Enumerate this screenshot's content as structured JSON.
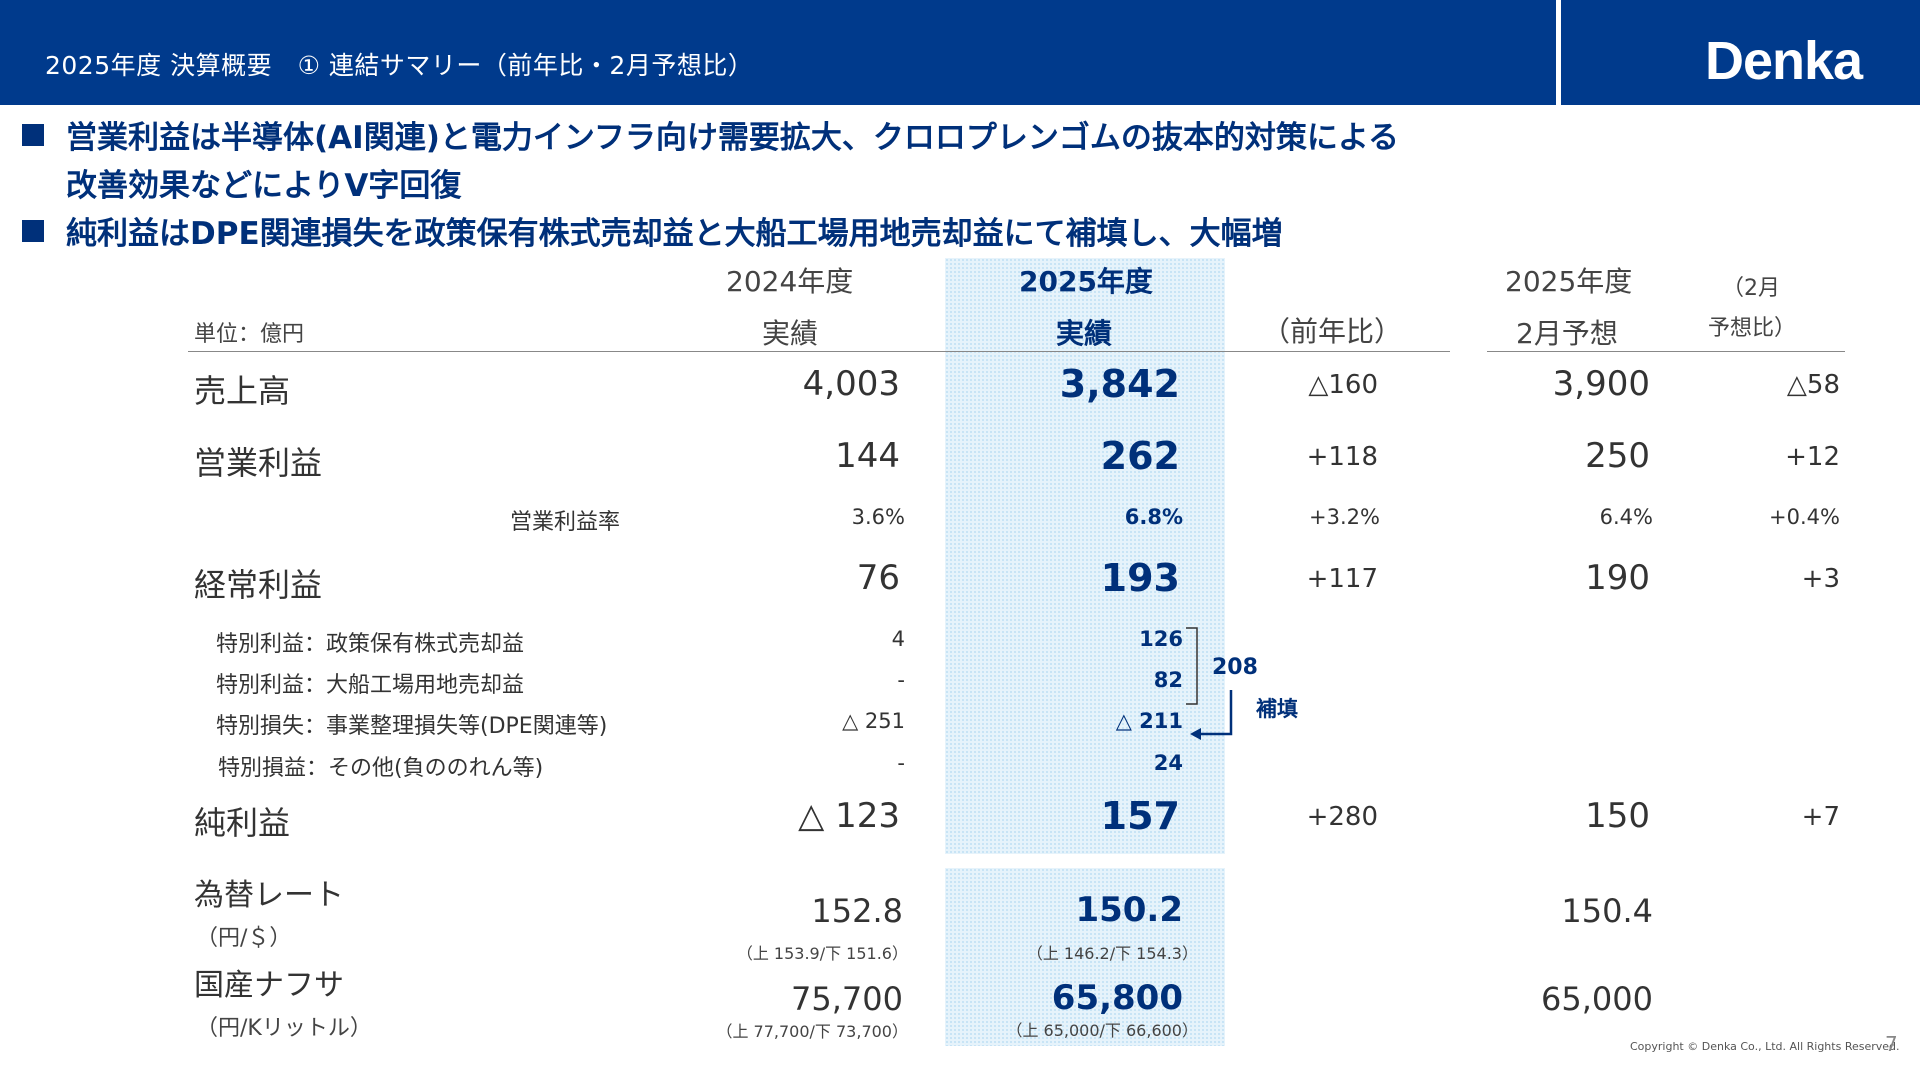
{
  "header": {
    "title": "2025年度 決算概要　① 連結サマリー（前年比・2月予想比）",
    "logo": "Denka"
  },
  "bullets": [
    {
      "line1": "営業利益は半導体(AI関連)と電力インフラ向け需要拡大、クロロプレンゴムの抜本的対策による",
      "line2": "改善効果などによりV字回復"
    },
    {
      "line1": "純利益はDPE関連損失を政策保有株式売却益と大船工場用地売却益にて補填し、大幅増"
    }
  ],
  "table": {
    "unit": "単位：億円",
    "columns": {
      "fy2024": {
        "line1": "2024年度",
        "line2": "実績"
      },
      "fy2025": {
        "line1": "2025年度",
        "line2": "実績"
      },
      "yoy": "（前年比）",
      "forecast": {
        "line1": "2025年度",
        "line2": "2月予想"
      },
      "vs_forecast": {
        "line1": "（2月",
        "line2": "予想比）"
      }
    },
    "rows": {
      "sales": {
        "label": "売上高",
        "fy2024": "4,003",
        "fy2025": "3,842",
        "yoy": "△160",
        "forecast": "3,900",
        "vs_forecast": "△58"
      },
      "operating_profit": {
        "label": "営業利益",
        "fy2024": "144",
        "fy2025": "262",
        "yoy": "+118",
        "forecast": "250",
        "vs_forecast": "+12"
      },
      "operating_margin": {
        "label": "営業利益率",
        "fy2024": "3.6%",
        "fy2025": "6.8%",
        "yoy": "+3.2%",
        "forecast": "6.4%",
        "vs_forecast": "+0.4%"
      },
      "ordinary_profit": {
        "label": "経常利益",
        "fy2024": "76",
        "fy2025": "193",
        "yoy": "+117",
        "forecast": "190",
        "vs_forecast": "+3"
      },
      "special_gain_shares": {
        "label": "特別利益：政策保有株式売却益",
        "fy2024": "4",
        "fy2025": "126"
      },
      "special_gain_land": {
        "label": "特別利益：大船工場用地売却益",
        "fy2024": "-",
        "fy2025": "82"
      },
      "special_loss_dpe": {
        "label": "特別損失：事業整理損失等(DPE関連等)",
        "fy2024": "△ 251",
        "fy2025": "△ 211"
      },
      "special_loss_other": {
        "label": "特別損益：その他(負ののれん等)",
        "fy2024": "-",
        "fy2025": "24"
      },
      "net_profit": {
        "label": "純利益",
        "fy2024": "△ 123",
        "fy2025": "157",
        "yoy": "+280",
        "forecast": "150",
        "vs_forecast": "+7"
      }
    },
    "annotation": {
      "sum": "208",
      "text": "補填"
    },
    "fx": {
      "label": "為替レート",
      "unit": "（円/＄）",
      "fy2024": "152.8",
      "fy2024_sub": "（上 153.9/下 151.6）",
      "fy2025": "150.2",
      "fy2025_sub": "（上 146.2/下 154.3）",
      "forecast": "150.4"
    },
    "naphtha": {
      "label": "国産ナフサ",
      "unit": "（円/Kリットル）",
      "fy2024": "75,700",
      "fy2024_sub": "（上 77,700/下 73,700）",
      "fy2025": "65,800",
      "fy2025_sub": "（上 65,000/下 66,600）",
      "forecast": "65,000"
    }
  },
  "footer": {
    "copyright": "Copyright © Denka Co., Ltd. All Rights Reserved.",
    "page": "7"
  },
  "colors": {
    "header_bg": "#003a8c",
    "accent": "#00307a",
    "highlight": "#e6f3fb"
  }
}
